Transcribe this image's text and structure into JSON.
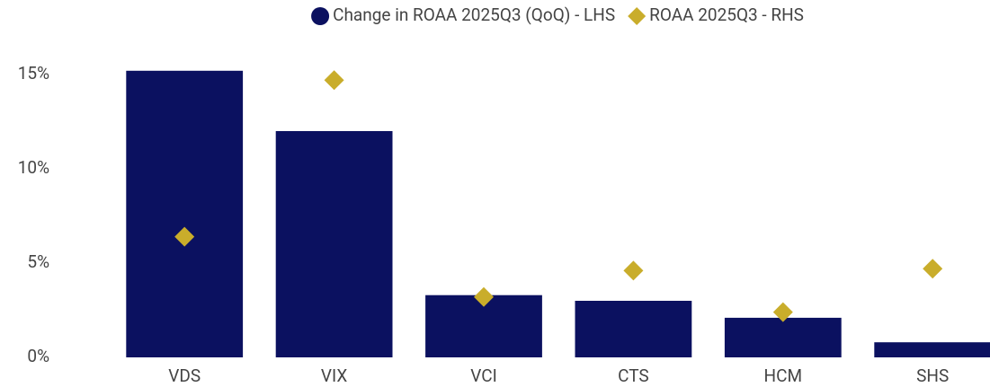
{
  "chart_data": {
    "type": "bar",
    "categories": [
      "VDS",
      "VIX",
      "VCI",
      "CTS",
      "HCM",
      "SHS"
    ],
    "series": [
      {
        "name": "Change in ROAA 2025Q3 (QoQ) - LHS",
        "color": "#0b1160",
        "values": [
          15.2,
          12.0,
          3.3,
          3.0,
          2.1,
          0.8
        ]
      },
      {
        "name": "ROAA 2025Q3 - RHS",
        "type": "scatter",
        "color": "#c9ad2b",
        "values": [
          6.4,
          14.7,
          3.2,
          4.6,
          2.4,
          4.7
        ]
      }
    ],
    "ylim": [
      0,
      16
    ],
    "yticks": [
      {
        "value": 0,
        "label": "0%"
      },
      {
        "value": 5,
        "label": "5%"
      },
      {
        "value": 10,
        "label": "10%"
      },
      {
        "value": 15,
        "label": "15%"
      }
    ],
    "grid": false,
    "legend": "top"
  }
}
